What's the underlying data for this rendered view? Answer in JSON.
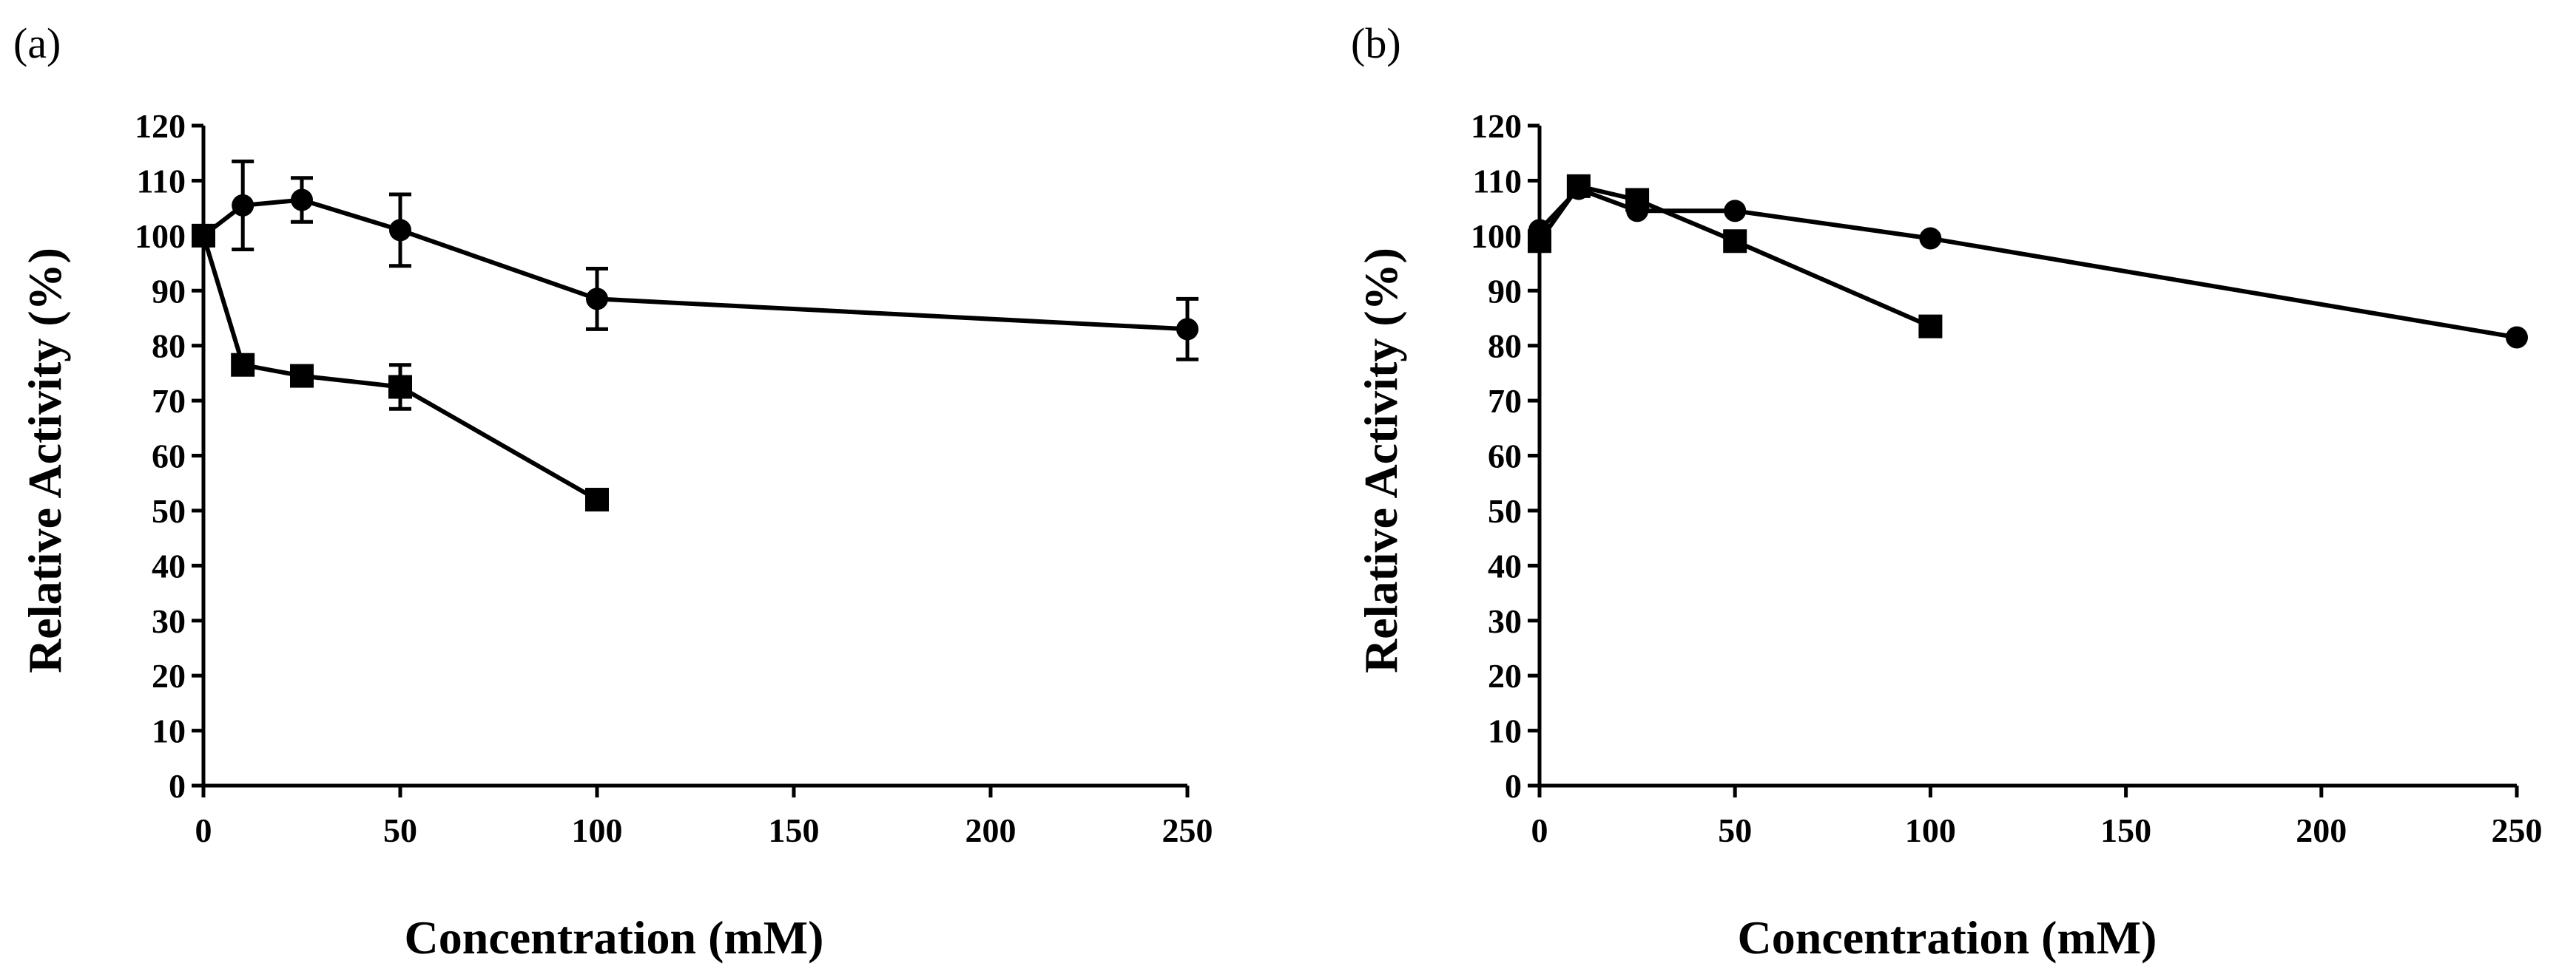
{
  "chart_data": [
    {
      "type": "line",
      "panel_label": "(a)",
      "xlabel": "Concentration (mM)",
      "ylabel": "Relative Activity (%)",
      "xlim": [
        0,
        250
      ],
      "ylim": [
        0,
        120
      ],
      "x_ticks": [
        0,
        50,
        100,
        150,
        200,
        250
      ],
      "y_ticks": [
        0,
        10,
        20,
        30,
        40,
        50,
        60,
        70,
        80,
        90,
        100,
        110,
        120
      ],
      "series": [
        {
          "name": "circle",
          "marker": "circle",
          "x": [
            0,
            10,
            25,
            50,
            100,
            250
          ],
          "y": [
            100,
            105.5,
            106.5,
            101,
            88.5,
            83
          ],
          "err": [
            0,
            8,
            4,
            6.5,
            5.5,
            5.5
          ]
        },
        {
          "name": "square",
          "marker": "square",
          "x": [
            0,
            10,
            25,
            50,
            100
          ],
          "y": [
            100,
            76.5,
            74.5,
            72.5,
            52
          ],
          "err": [
            0,
            0,
            0,
            4,
            0
          ]
        }
      ]
    },
    {
      "type": "line",
      "panel_label": "(b)",
      "xlabel": "Concentration (mM)",
      "ylabel": "Relative Activity (%)",
      "xlim": [
        0,
        250
      ],
      "ylim": [
        0,
        120
      ],
      "x_ticks": [
        0,
        50,
        100,
        150,
        200,
        250
      ],
      "y_ticks": [
        0,
        10,
        20,
        30,
        40,
        50,
        60,
        70,
        80,
        90,
        100,
        110,
        120
      ],
      "series": [
        {
          "name": "circle",
          "marker": "circle",
          "x": [
            0,
            10,
            25,
            50,
            100,
            250
          ],
          "y": [
            101,
            108.5,
            104.5,
            104.5,
            99.5,
            81.5
          ],
          "err": [
            0,
            0,
            0,
            0,
            0,
            0
          ]
        },
        {
          "name": "square",
          "marker": "square",
          "x": [
            0,
            10,
            25,
            50,
            100
          ],
          "y": [
            99,
            109,
            106.5,
            99,
            83.5
          ],
          "err": [
            0,
            0,
            0,
            0,
            0
          ]
        }
      ]
    }
  ]
}
